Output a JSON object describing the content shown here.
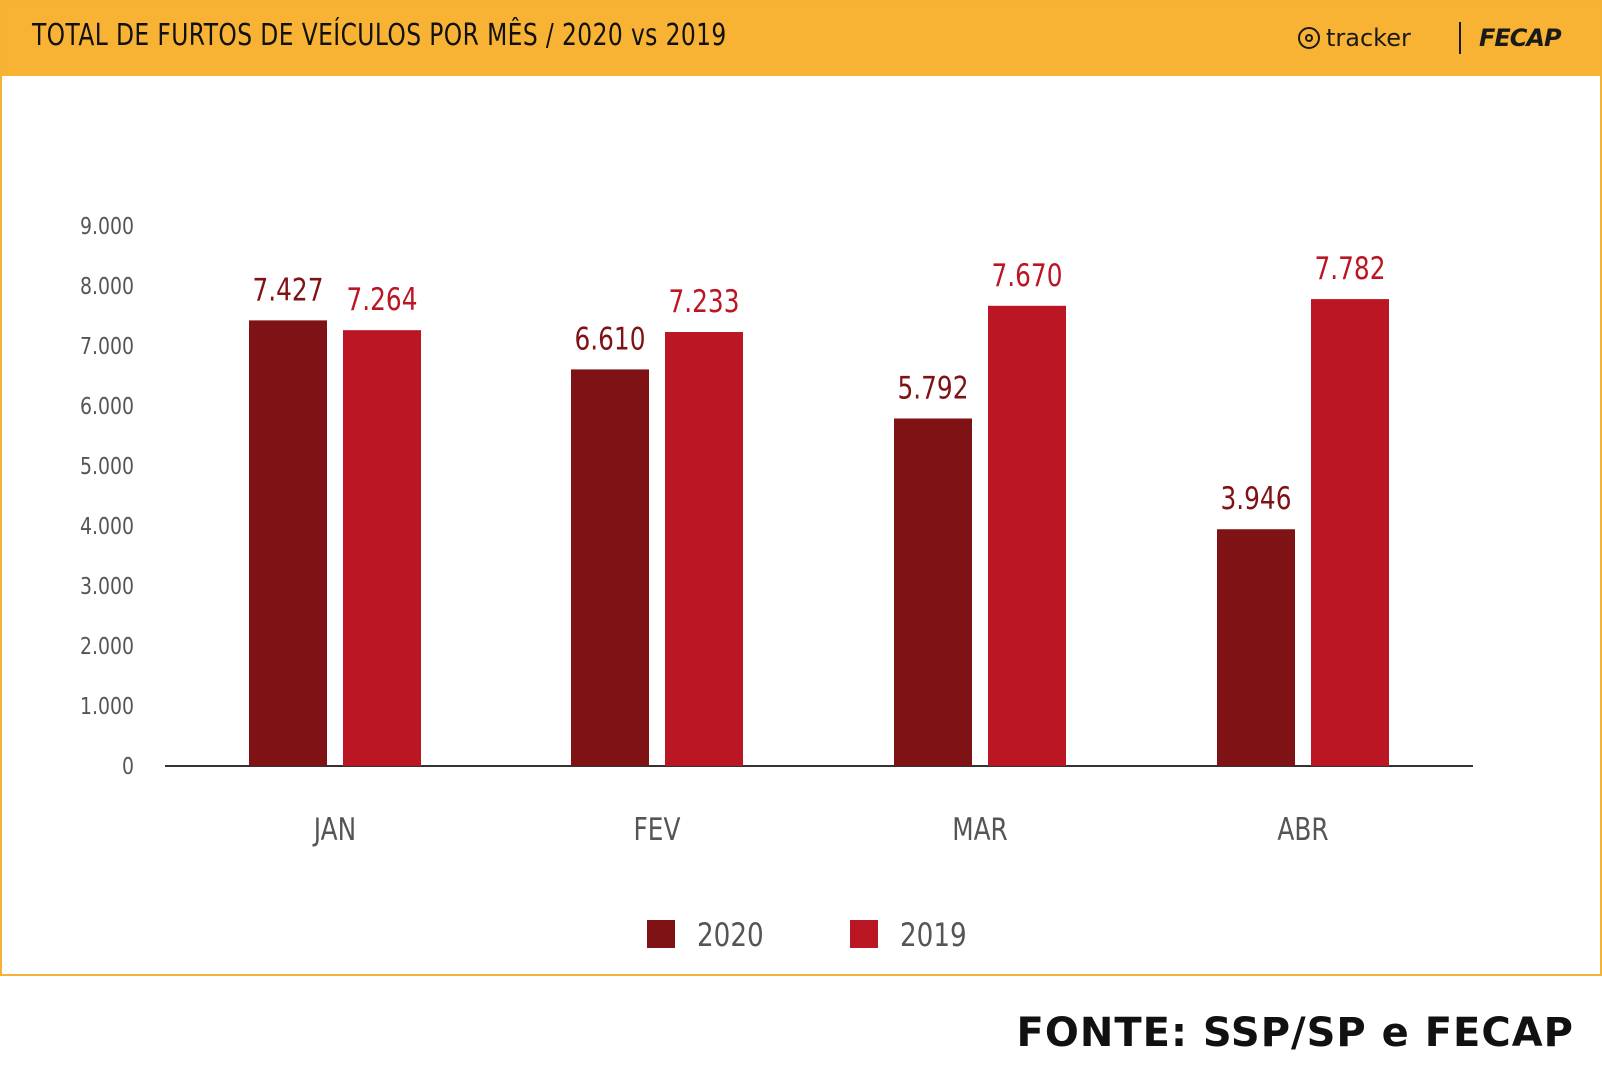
{
  "header": {
    "title": "TOTAL DE FURTOS DE VEÍCULOS POR MÊS / 2020 vs 2019",
    "brand_tracker": "tracker",
    "brand_fecap": "FECAP"
  },
  "source": "FONTE: SSP/SP e FECAP",
  "colors": {
    "header_bg": "#f8b334",
    "series_2020": "#7f1214",
    "series_2019": "#bb1624",
    "axis_text": "#555555"
  },
  "chart_data": {
    "type": "bar",
    "categories": [
      "JAN",
      "FEV",
      "MAR",
      "ABR"
    ],
    "series": [
      {
        "name": "2020",
        "values": [
          7427,
          6610,
          5792,
          3946
        ],
        "labels": [
          "7.427",
          "6.610",
          "5.792",
          "3.946"
        ],
        "color": "#7f1214"
      },
      {
        "name": "2019",
        "values": [
          7264,
          7233,
          7670,
          7782
        ],
        "labels": [
          "7.264",
          "7.233",
          "7.670",
          "7.782"
        ],
        "color": "#bb1624"
      }
    ],
    "yticks": [
      "0",
      "1.000",
      "2.000",
      "3.000",
      "4.000",
      "5.000",
      "6.000",
      "7.000",
      "8.000",
      "9.000"
    ],
    "ylim": [
      0,
      9000
    ],
    "grid": false,
    "legend_position": "bottom"
  }
}
